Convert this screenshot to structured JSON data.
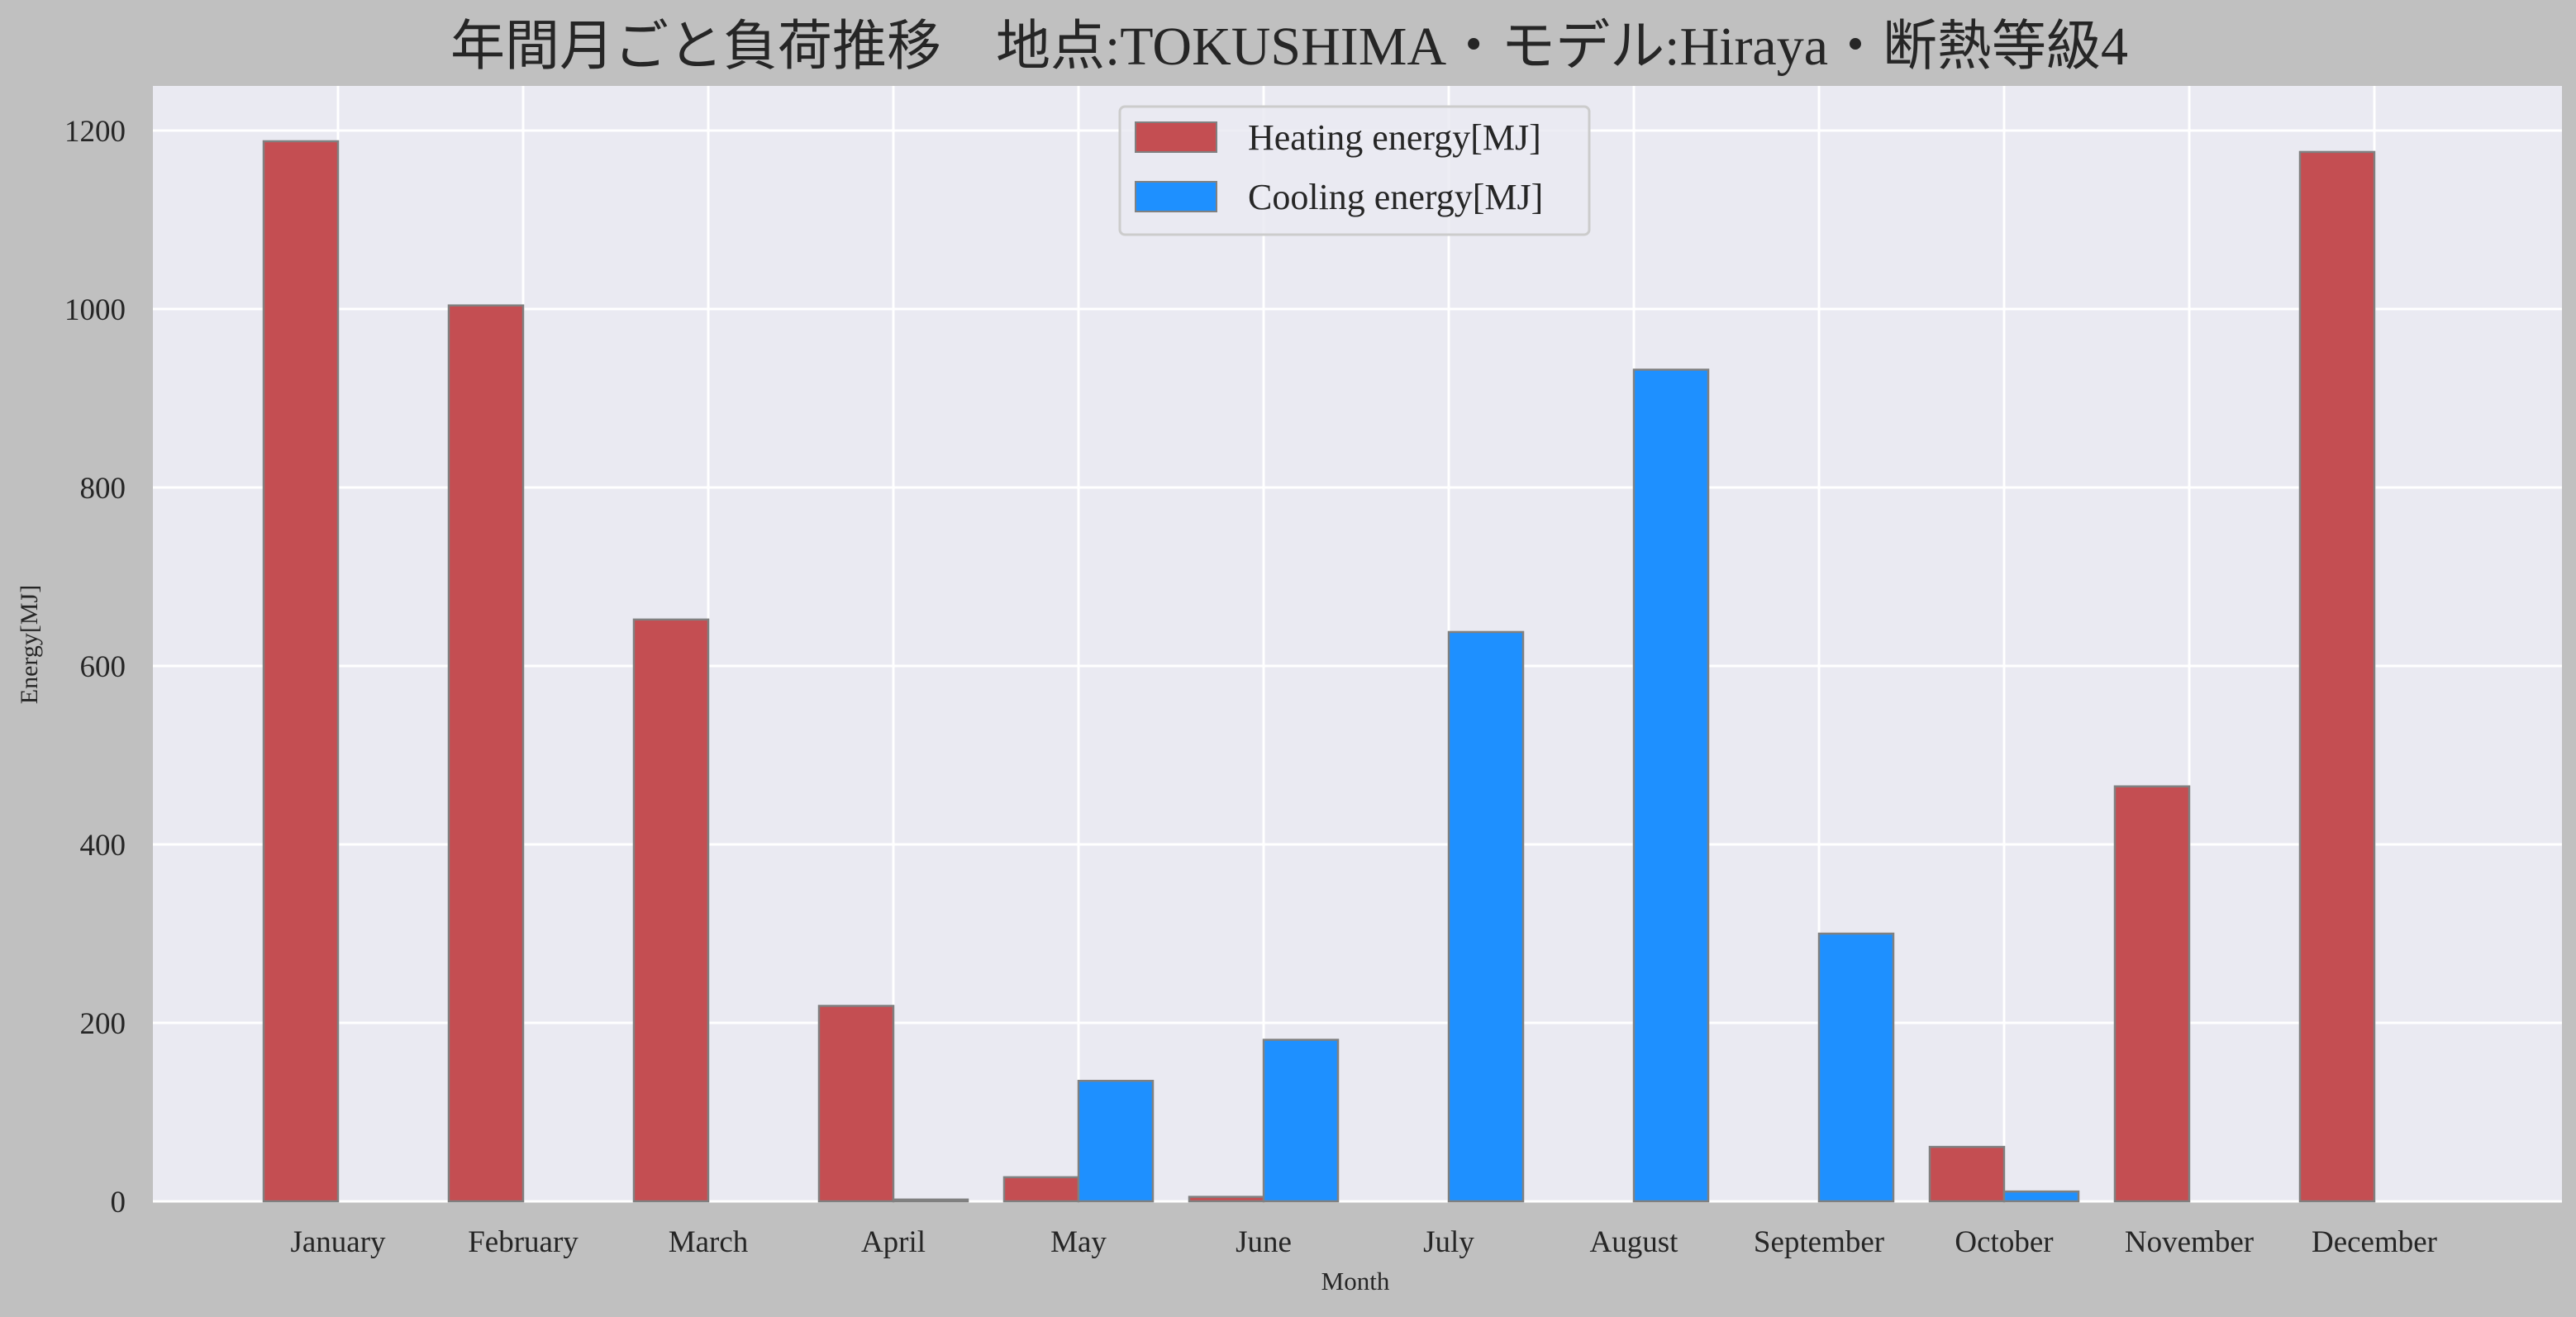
{
  "chart_data": {
    "type": "bar",
    "title": "年間月ごと負荷推移　地点:TOKUSHIMA・モデル:Hiraya・断熱等級4",
    "xlabel": "Month",
    "ylabel": "Energy[MJ]",
    "categories": [
      "January",
      "February",
      "March",
      "April",
      "May",
      "June",
      "July",
      "August",
      "September",
      "October",
      "November",
      "December"
    ],
    "series": [
      {
        "name": "Heating energy[MJ]",
        "color": "#c44e52",
        "values": [
          1188,
          1004,
          652,
          219,
          27,
          5,
          0,
          0,
          0,
          61,
          465,
          1176
        ]
      },
      {
        "name": "Cooling energy[MJ]",
        "color": "#1e90ff",
        "values": [
          0,
          0,
          0,
          2,
          135,
          181,
          638,
          932,
          300,
          11,
          0,
          0
        ]
      }
    ],
    "yticks": [
      0,
      200,
      400,
      600,
      800,
      1000,
      1200
    ],
    "ylim": [
      0,
      1250
    ],
    "grid": true,
    "legend_position": "top-center",
    "plot_background": "#eaeaf2",
    "figure_background": "#c0c0c0",
    "bar_edge_color": "#808080"
  }
}
